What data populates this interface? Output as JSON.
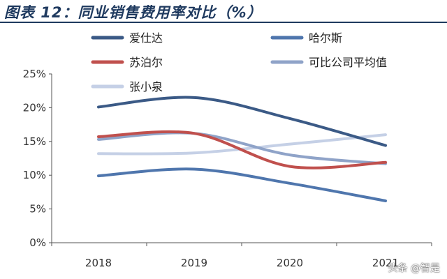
{
  "header": {
    "title": "图表 12：同业销售费用率对比（%）"
  },
  "chart_data": {
    "type": "line",
    "title": "图表 12：同业销售费用率对比（%）",
    "x": [
      "2018",
      "2019",
      "2020",
      "2021"
    ],
    "ylim": [
      0,
      25
    ],
    "yticks": [
      "0%",
      "5%",
      "10%",
      "15%",
      "20%",
      "25%"
    ],
    "ytick_values": [
      0,
      5,
      10,
      15,
      20,
      25
    ],
    "grid": false,
    "legend_position": "top",
    "series": [
      {
        "name": "爱仕达",
        "color": "#3b5a86",
        "values": [
          20.1,
          21.5,
          18.4,
          14.4
        ]
      },
      {
        "name": "哈尔斯",
        "color": "#4f76ad",
        "values": [
          9.9,
          10.9,
          8.8,
          6.2
        ]
      },
      {
        "name": "苏泊尔",
        "color": "#c0504d",
        "values": [
          15.7,
          16.2,
          11.3,
          11.9
        ]
      },
      {
        "name": "可比公司平均值",
        "color": "#8fa3c8",
        "values": [
          15.3,
          16.2,
          13.0,
          11.7
        ]
      },
      {
        "name": "张小泉",
        "color": "#c5d0e6",
        "values": [
          13.2,
          13.3,
          14.6,
          16.0
        ]
      }
    ]
  },
  "watermark": "头条 @智是"
}
